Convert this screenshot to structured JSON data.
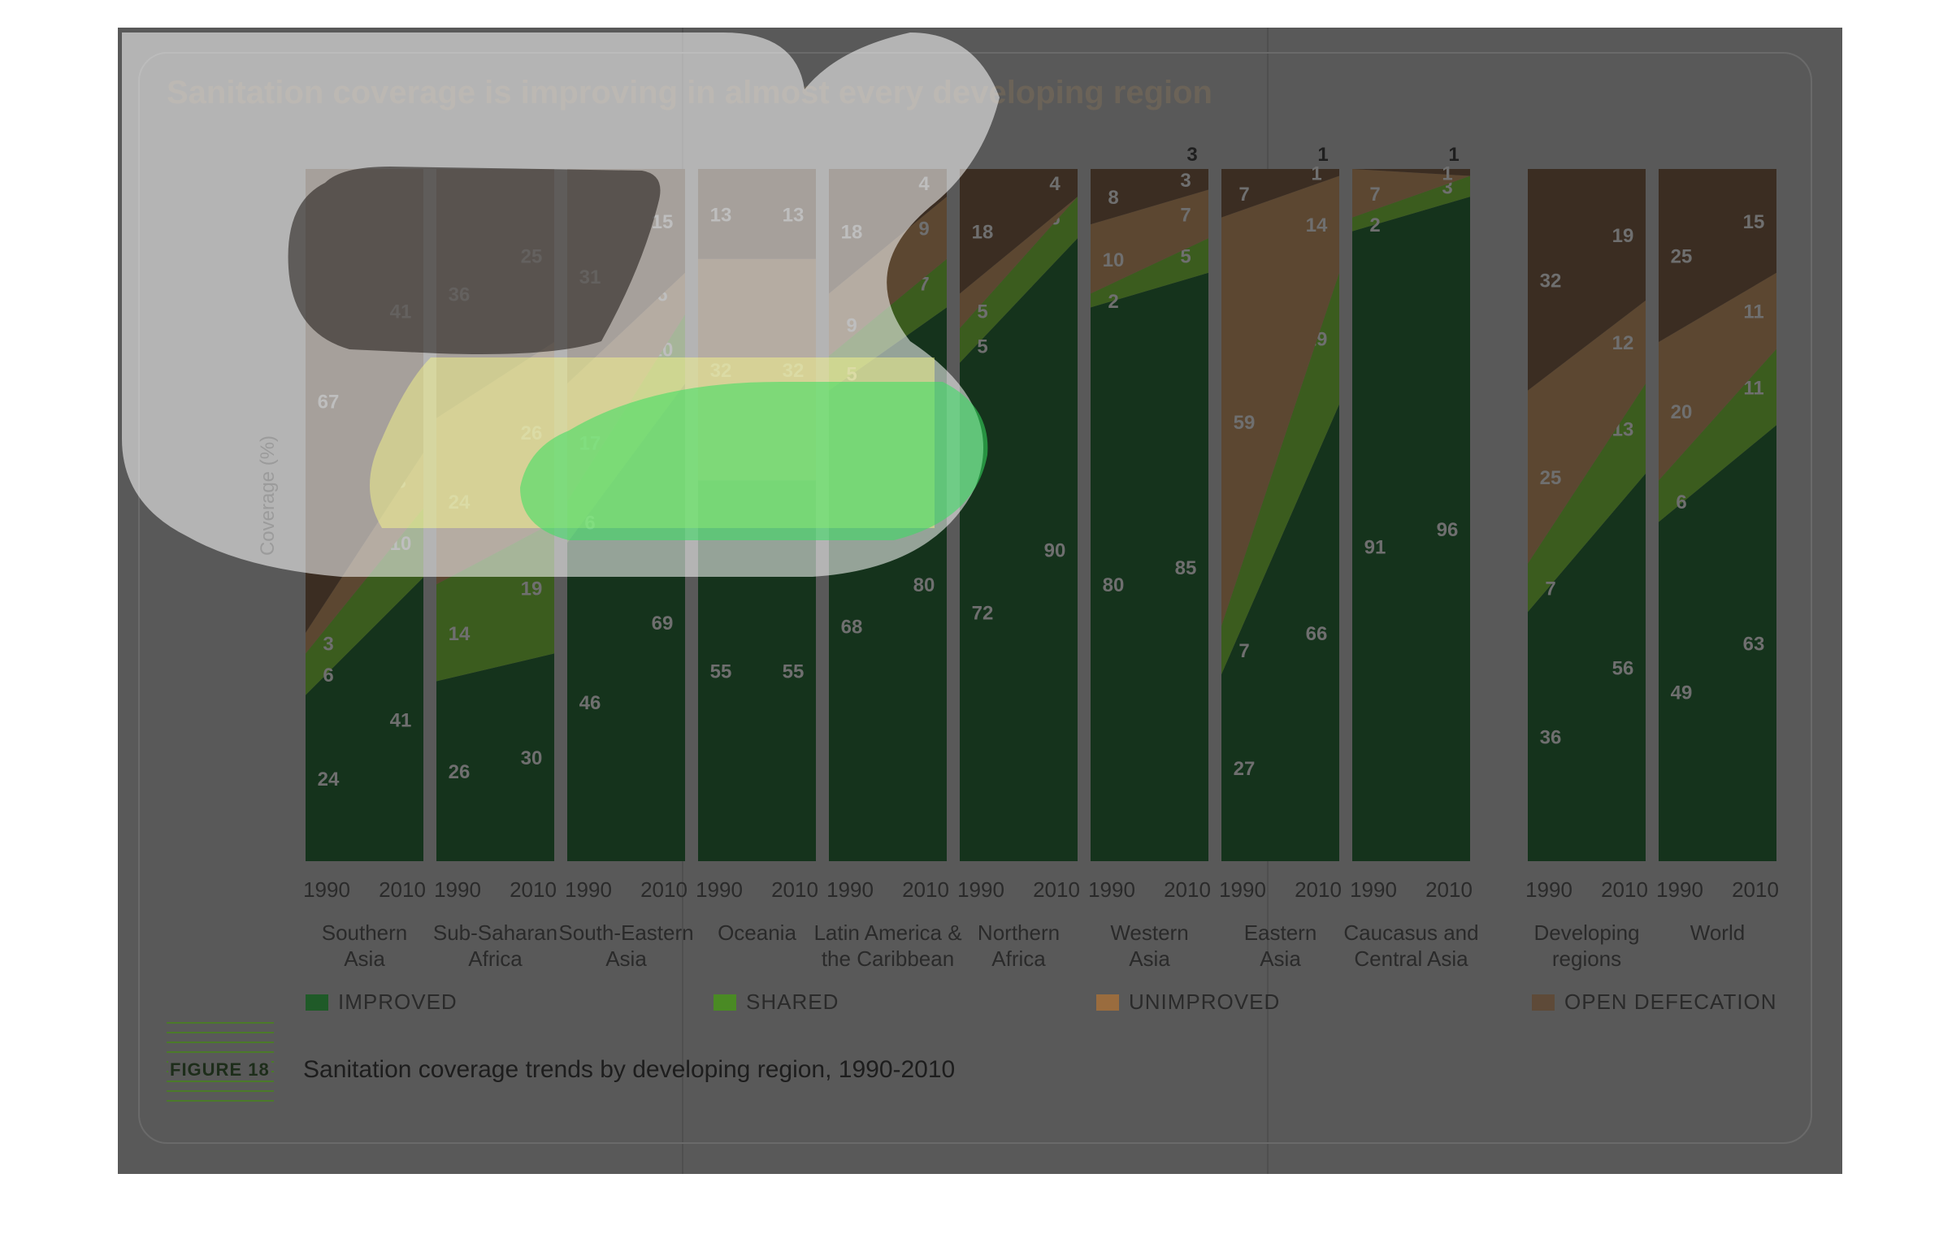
{
  "title": "Sanitation coverage is improving in almost every developing region",
  "figure": {
    "label": "FIGURE 18",
    "caption": "Sanitation coverage trends by developing region, 1990-2010"
  },
  "colors": {
    "improved": "#15331c",
    "shared": "#3b5c1e",
    "unimproved": "#5c4731",
    "open_defecation": "#3b2d22",
    "legend_improved": "#1f5a28",
    "legend_shared": "#4a8a24",
    "legend_unimproved": "#9a6c3e",
    "legend_open": "#5e4a38"
  },
  "legend": [
    {
      "key": "improved",
      "label": "IMPROVED"
    },
    {
      "key": "shared",
      "label": "SHARED"
    },
    {
      "key": "unimproved",
      "label": "UNIMPROVED"
    },
    {
      "key": "open_defecation",
      "label": "OPEN DEFECATION"
    }
  ],
  "chart_data": {
    "type": "area",
    "ylabel": "Coverage (%)",
    "ylim": [
      0,
      100
    ],
    "stack_order": [
      "Improved",
      "Shared",
      "Unimproved",
      "Open defecation"
    ],
    "x": [
      "1990",
      "2010"
    ],
    "regions": [
      {
        "name": "Southern Asia",
        "label_lines": [
          "Southern",
          "Asia"
        ],
        "improved": [
          24,
          41
        ],
        "shared": [
          6,
          10
        ],
        "unimproved": [
          3,
          8
        ],
        "open_defecation": [
          67,
          41
        ]
      },
      {
        "name": "Sub-Saharan Africa",
        "label_lines": [
          "Sub-Saharan",
          "Africa"
        ],
        "improved": [
          26,
          30
        ],
        "shared": [
          14,
          19
        ],
        "unimproved": [
          24,
          26
        ],
        "open_defecation": [
          36,
          25
        ]
      },
      {
        "name": "South-Eastern Asia",
        "label_lines": [
          "South-Eastern",
          "Asia"
        ],
        "improved": [
          46,
          69
        ],
        "shared": [
          6,
          10
        ],
        "unimproved": [
          17,
          6
        ],
        "open_defecation": [
          31,
          15
        ]
      },
      {
        "name": "Oceania",
        "label_lines": [
          "Oceania"
        ],
        "improved": [
          55,
          55
        ],
        "shared": [
          0,
          0
        ],
        "unimproved": [
          32,
          32
        ],
        "open_defecation": [
          13,
          13
        ]
      },
      {
        "name": "Latin America & the Caribbean",
        "label_lines": [
          "Latin America &",
          "the Caribbean"
        ],
        "improved": [
          68,
          80
        ],
        "shared": [
          5,
          7
        ],
        "unimproved": [
          9,
          9
        ],
        "open_defecation": [
          18,
          4
        ]
      },
      {
        "name": "Northern Africa",
        "label_lines": [
          "Northern",
          "Africa"
        ],
        "improved": [
          72,
          90
        ],
        "shared": [
          5,
          6
        ],
        "unimproved": [
          5,
          0
        ],
        "open_defecation": [
          18,
          4
        ]
      },
      {
        "name": "Western Asia",
        "label_lines": [
          "Western",
          "Asia"
        ],
        "improved": [
          80,
          85
        ],
        "shared": [
          2,
          5
        ],
        "unimproved": [
          10,
          7
        ],
        "open_defecation": [
          8,
          3
        ]
      },
      {
        "name": "Eastern Asia",
        "label_lines": [
          "Eastern",
          "Asia"
        ],
        "improved": [
          27,
          66
        ],
        "shared": [
          7,
          19
        ],
        "unimproved": [
          59,
          14
        ],
        "open_defecation": [
          7,
          1
        ]
      },
      {
        "name": "Caucasus and Central Asia",
        "label_lines": [
          "Caucasus and",
          "Central Asia"
        ],
        "improved": [
          91,
          96
        ],
        "shared": [
          2,
          3
        ],
        "unimproved": [
          7,
          0
        ],
        "open_defecation": [
          0,
          1
        ]
      },
      {
        "name": "Developing regions",
        "label_lines": [
          "Developing",
          "regions"
        ],
        "improved": [
          36,
          56
        ],
        "shared": [
          7,
          13
        ],
        "unimproved": [
          25,
          12
        ],
        "open_defecation": [
          32,
          19
        ]
      },
      {
        "name": "World",
        "label_lines": [
          "World"
        ],
        "improved": [
          49,
          63
        ],
        "shared": [
          6,
          11
        ],
        "unimproved": [
          20,
          11
        ],
        "open_defecation": [
          25,
          15
        ]
      }
    ]
  }
}
